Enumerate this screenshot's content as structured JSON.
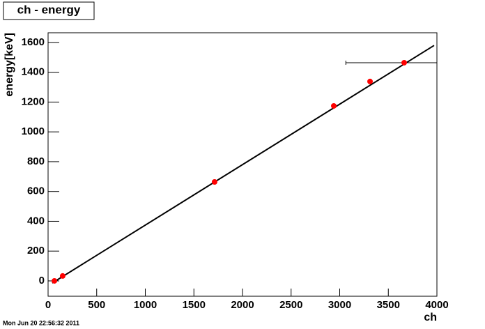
{
  "chart_data": {
    "type": "scatter",
    "title": "ch - energy",
    "x_label": "ch",
    "y_label": "energy[keV]",
    "footer": "Mon Jun 20 22:56:32 2011",
    "x": [
      65,
      150,
      1713,
      2939,
      3312,
      3663
    ],
    "values": [
      0,
      33,
      664,
      1174,
      1338,
      1464
    ],
    "x_errors": [
      0,
      0,
      0,
      0,
      0,
      600
    ],
    "color": "#ff0000",
    "fit": {
      "x": [
        43,
        3971
      ],
      "values": [
        -14,
        1580
      ],
      "color": "#000000"
    },
    "xlim": [
      0,
      4000
    ],
    "ylim": [
      -103,
      1665
    ],
    "xticks": [
      0,
      500,
      1000,
      1500,
      2000,
      2500,
      3000,
      3500,
      4000
    ],
    "yticks": [
      0,
      200,
      400,
      600,
      800,
      1000,
      1200,
      1400,
      1600
    ]
  }
}
